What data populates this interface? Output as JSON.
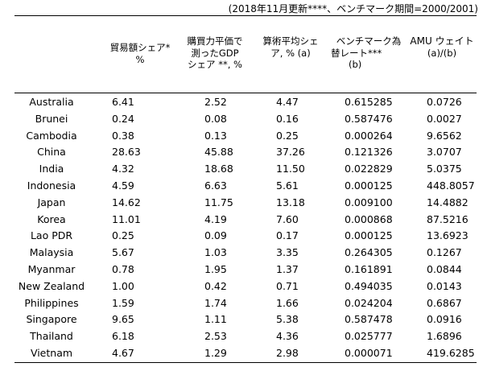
{
  "note": "(2018年11月更新****、ベンチマーク期間=2000/2001)",
  "headers": {
    "trade_share": [
      "貿易額シェア*",
      "%"
    ],
    "ppp_gdp_share": [
      "購買力平価で",
      "測ったGDP",
      "シェア **, %"
    ],
    "arith_avg_share": [
      "算術平均シェ",
      "ア, %  (a)"
    ],
    "benchmark_rate": [
      "ベンチマーク為",
      "替レート***",
      "(b)"
    ],
    "amu_weight": [
      "AMU ウェイト",
      "(a)/(b)"
    ]
  },
  "rows": [
    {
      "country": "Australia",
      "trade": "6.41",
      "ppp": "2.52",
      "avg": "4.47",
      "rate": "0.615285",
      "weight": "0.0726"
    },
    {
      "country": "Brunei",
      "trade": "0.24",
      "ppp": "0.08",
      "avg": "0.16",
      "rate": "0.587476",
      "weight": "0.0027"
    },
    {
      "country": "Cambodia",
      "trade": "0.38",
      "ppp": "0.13",
      "avg": "0.25",
      "rate": "0.000264",
      "weight": "9.6562"
    },
    {
      "country": "China",
      "trade": "28.63",
      "ppp": "45.88",
      "avg": "37.26",
      "rate": "0.121326",
      "weight": "3.0707"
    },
    {
      "country": "India",
      "trade": "4.32",
      "ppp": "18.68",
      "avg": "11.50",
      "rate": "0.022829",
      "weight": "5.0375"
    },
    {
      "country": "Indonesia",
      "trade": "4.59",
      "ppp": "6.63",
      "avg": "5.61",
      "rate": "0.000125",
      "weight": "448.8057"
    },
    {
      "country": "Japan",
      "trade": "14.62",
      "ppp": "11.75",
      "avg": "13.18",
      "rate": "0.009100",
      "weight": "14.4882"
    },
    {
      "country": "Korea",
      "trade": "11.01",
      "ppp": "4.19",
      "avg": "7.60",
      "rate": "0.000868",
      "weight": "87.5216"
    },
    {
      "country": "Lao PDR",
      "trade": "0.25",
      "ppp": "0.09",
      "avg": "0.17",
      "rate": "0.000125",
      "weight": "13.6923"
    },
    {
      "country": "Malaysia",
      "trade": "5.67",
      "ppp": "1.03",
      "avg": "3.35",
      "rate": "0.264305",
      "weight": "0.1267"
    },
    {
      "country": "Myanmar",
      "trade": "0.78",
      "ppp": "1.95",
      "avg": "1.37",
      "rate": "0.161891",
      "weight": "0.0844"
    },
    {
      "country": "New Zealand",
      "trade": "1.00",
      "ppp": "0.42",
      "avg": "0.71",
      "rate": "0.494035",
      "weight": "0.0143"
    },
    {
      "country": "Philippines",
      "trade": "1.59",
      "ppp": "1.74",
      "avg": "1.66",
      "rate": "0.024204",
      "weight": "0.6867"
    },
    {
      "country": "Singapore",
      "trade": "9.65",
      "ppp": "1.11",
      "avg": "5.38",
      "rate": "0.587478",
      "weight": "0.0916"
    },
    {
      "country": "Thailand",
      "trade": "6.18",
      "ppp": "2.53",
      "avg": "4.36",
      "rate": "0.025777",
      "weight": "1.6896"
    },
    {
      "country": "Vietnam",
      "trade": "4.67",
      "ppp": "1.29",
      "avg": "2.98",
      "rate": "0.000071",
      "weight": "419.6285"
    }
  ]
}
